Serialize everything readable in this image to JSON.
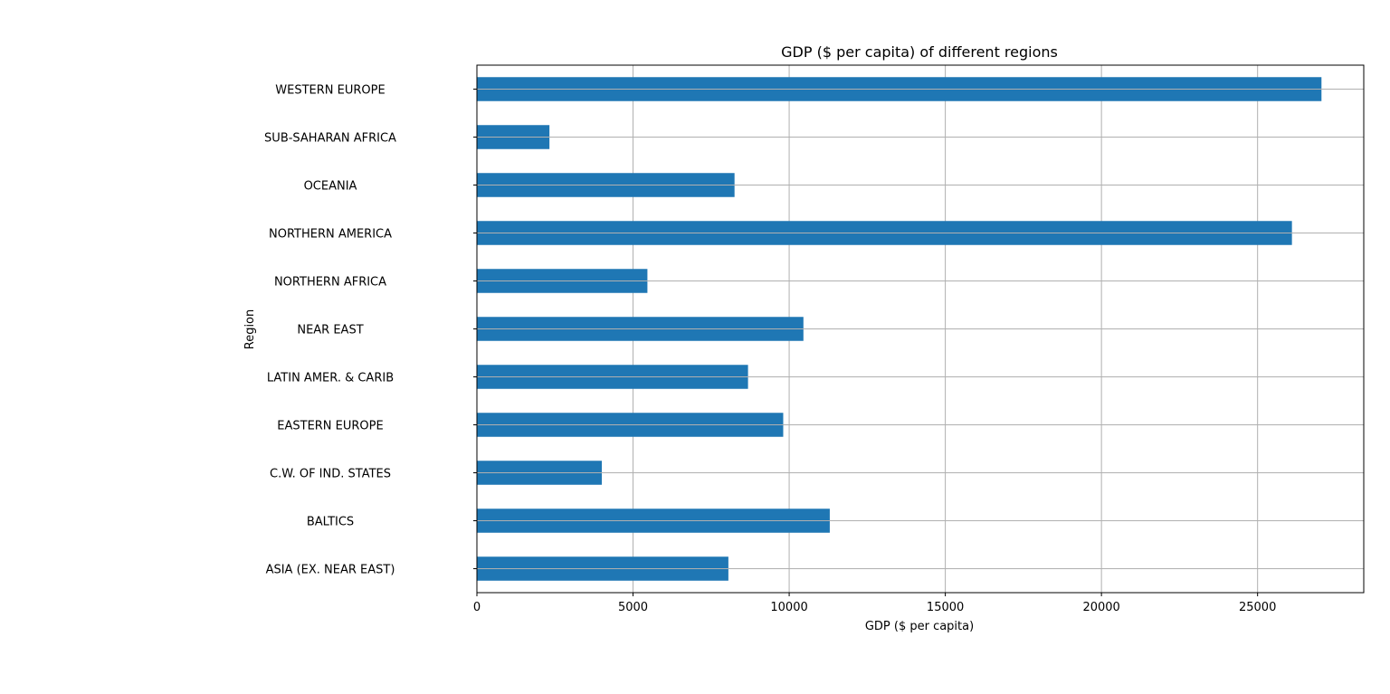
{
  "chart_data": {
    "type": "bar",
    "orientation": "horizontal",
    "title": "GDP ($ per capita) of different regions",
    "xlabel": "GDP ($ per capita)",
    "ylabel": "Region",
    "categories": [
      "ASIA (EX. NEAR EAST)",
      "BALTICS",
      "C.W. OF IND. STATES",
      "EASTERN EUROPE",
      "LATIN AMER. & CARIB",
      "NEAR EAST",
      "NORTHERN AFRICA",
      "NORTHERN AMERICA",
      "OCEANIA",
      "SUB-SAHARAN AFRICA",
      "WESTERN EUROPE"
    ],
    "values": [
      8053,
      11300,
      4000,
      9809,
      8682,
      10456,
      5460,
      26100,
      8250,
      2323,
      27046
    ],
    "xlim": [
      0,
      28400
    ],
    "xticks": [
      "0",
      "5000",
      "10000",
      "15000",
      "20000",
      "25000"
    ],
    "xtick_values": [
      0,
      5000,
      10000,
      15000,
      20000,
      25000
    ],
    "grid": true,
    "bar_color": "#1f77b4",
    "grid_color": "#b0b0b0"
  }
}
